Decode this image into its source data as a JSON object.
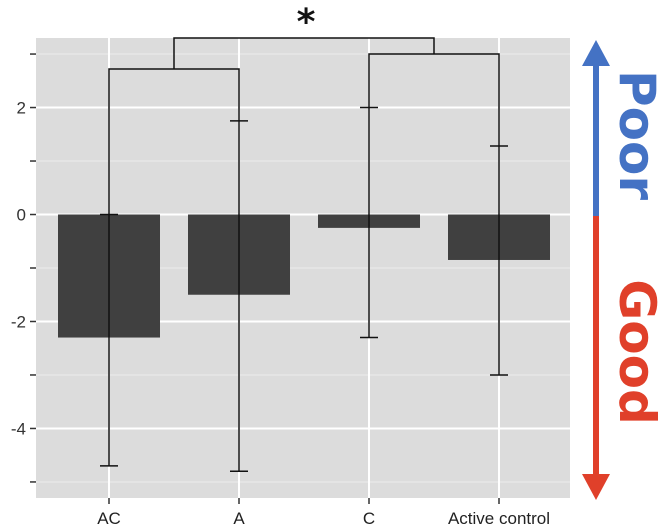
{
  "chart_data": {
    "type": "bar",
    "title": "",
    "xlabel": "",
    "ylabel": "",
    "categories": [
      "AC",
      "A",
      "C",
      "Active control"
    ],
    "values": [
      -2.3,
      -1.5,
      -0.25,
      -0.85
    ],
    "error_bars": [
      {
        "low": -4.7,
        "high": 0.0
      },
      {
        "low": -4.8,
        "high": 1.75
      },
      {
        "low": -2.3,
        "high": 2.0
      },
      {
        "low": -3.0,
        "high": 1.28
      }
    ],
    "ylim": [
      -5.3,
      3.3
    ],
    "yticks": [
      -4,
      -2,
      0,
      2
    ],
    "ytick_labels": [
      "-4",
      "-2",
      "0",
      "2"
    ],
    "grid": true,
    "bar_color": "#404040",
    "panel_color": "#dcdcdc",
    "significance": {
      "marker": "*",
      "comparison": "AC & A vs C & Active control"
    },
    "direction_indicator": {
      "up_label": "Poor",
      "up_color": "#4472c4",
      "down_label": "Good",
      "down_color": "#e0402a"
    }
  }
}
